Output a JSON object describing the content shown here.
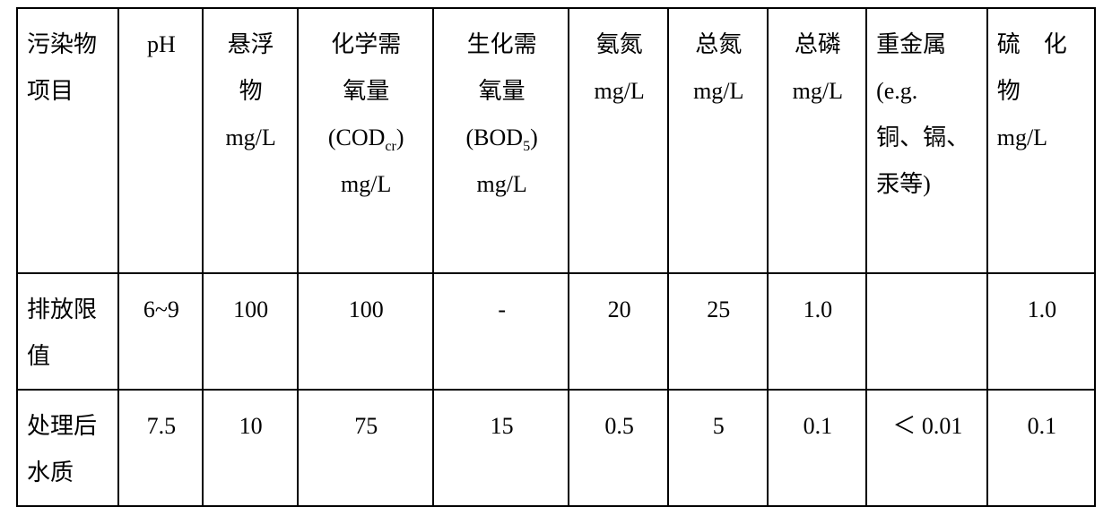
{
  "table": {
    "type": "table",
    "border_color": "#000000",
    "background_color": "#ffffff",
    "text_color": "#000000",
    "font_family": "SimSun",
    "font_size_pt": 20,
    "line_height": 2.0,
    "col_widths_pct": [
      9.4,
      7.8,
      8.8,
      12.6,
      12.6,
      9.2,
      9.2,
      9.2,
      11.2,
      10.0
    ],
    "headers": {
      "c0": {
        "l1": "污染物",
        "l2": "项目"
      },
      "c1": {
        "l1": "pH"
      },
      "c2": {
        "l1": "悬浮",
        "l2": "物",
        "l3": "mg/L"
      },
      "c3": {
        "l1": "化学需",
        "l2": "氧量",
        "l3a": "(COD",
        "l3b": "cr",
        "l3c": ")",
        "l4": "mg/L"
      },
      "c4": {
        "l1": "生化需",
        "l2": "氧量",
        "l3a": "(BOD",
        "l3b": "5",
        "l3c": ")",
        "l4": "mg/L"
      },
      "c5": {
        "l1": "氨氮",
        "l2": "mg/L"
      },
      "c6": {
        "l1": "总氮",
        "l2": "mg/L"
      },
      "c7": {
        "l1": "总磷",
        "l2": "mg/L"
      },
      "c8": {
        "l1": "重金属",
        "l2": "(e.g.",
        "l3": "铜、镉、",
        "l4": "汞等)"
      },
      "c9": {
        "l1": "硫　化",
        "l2": "物",
        "l3": "mg/L"
      }
    },
    "rows": [
      {
        "label_l1": "排放限",
        "label_l2": "值",
        "cells": [
          "6~9",
          "100",
          "100",
          "-",
          "20",
          "25",
          "1.0",
          "",
          "1.0"
        ]
      },
      {
        "label_l1": "处理后",
        "label_l2": "水质",
        "cells": [
          "7.5",
          "10",
          "75",
          "15",
          "0.5",
          "5",
          "0.1",
          "＜ 0.01",
          "0.1"
        ]
      }
    ]
  }
}
